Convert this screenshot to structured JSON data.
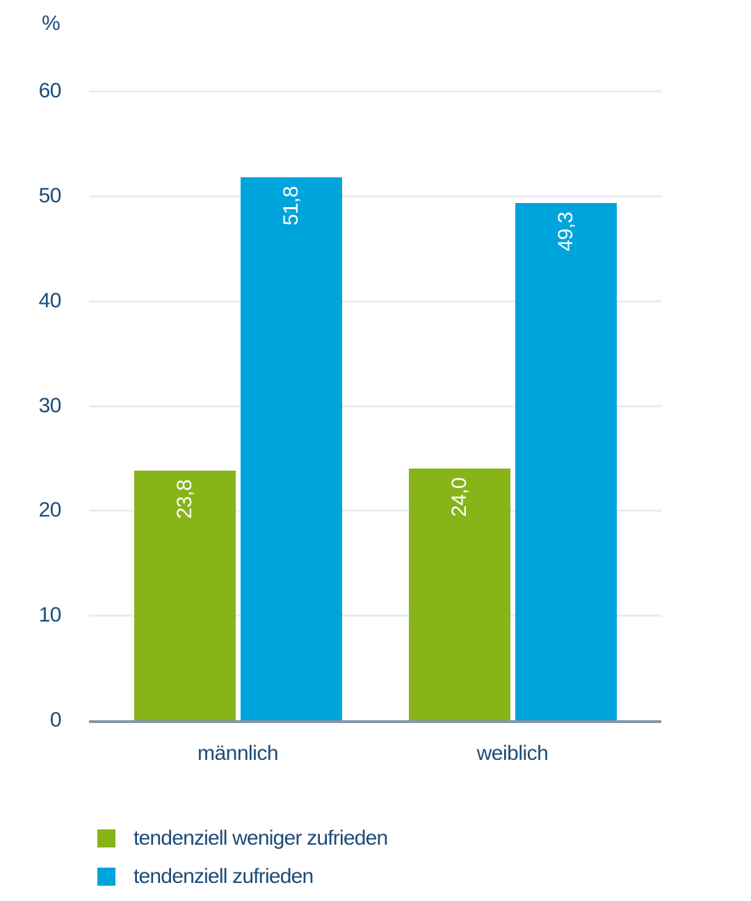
{
  "chart_data": {
    "type": "bar",
    "ylabel": "%",
    "categories": [
      "männlich",
      "weiblich"
    ],
    "series": [
      {
        "name": "tendenziell weniger zufrieden",
        "color": "#87b419",
        "values": [
          23.8,
          24.0
        ],
        "value_labels": [
          "23,8",
          "24,0"
        ]
      },
      {
        "name": "tendenziell zufrieden",
        "color": "#00a4dc",
        "values": [
          51.8,
          49.3
        ],
        "value_labels": [
          "51,8",
          "49,3"
        ]
      }
    ],
    "y_axis": {
      "ticks": [
        0,
        10,
        20,
        30,
        40,
        50,
        60
      ],
      "ylim": [
        0,
        60
      ],
      "grid": true
    },
    "legend_position": "bottom",
    "colors": {
      "axis_text": "#1c4b77",
      "gridline": "#e9edf1",
      "axis_line": "#8496a9",
      "value_label_text": "#ffffff",
      "background": "#ffffff"
    }
  }
}
